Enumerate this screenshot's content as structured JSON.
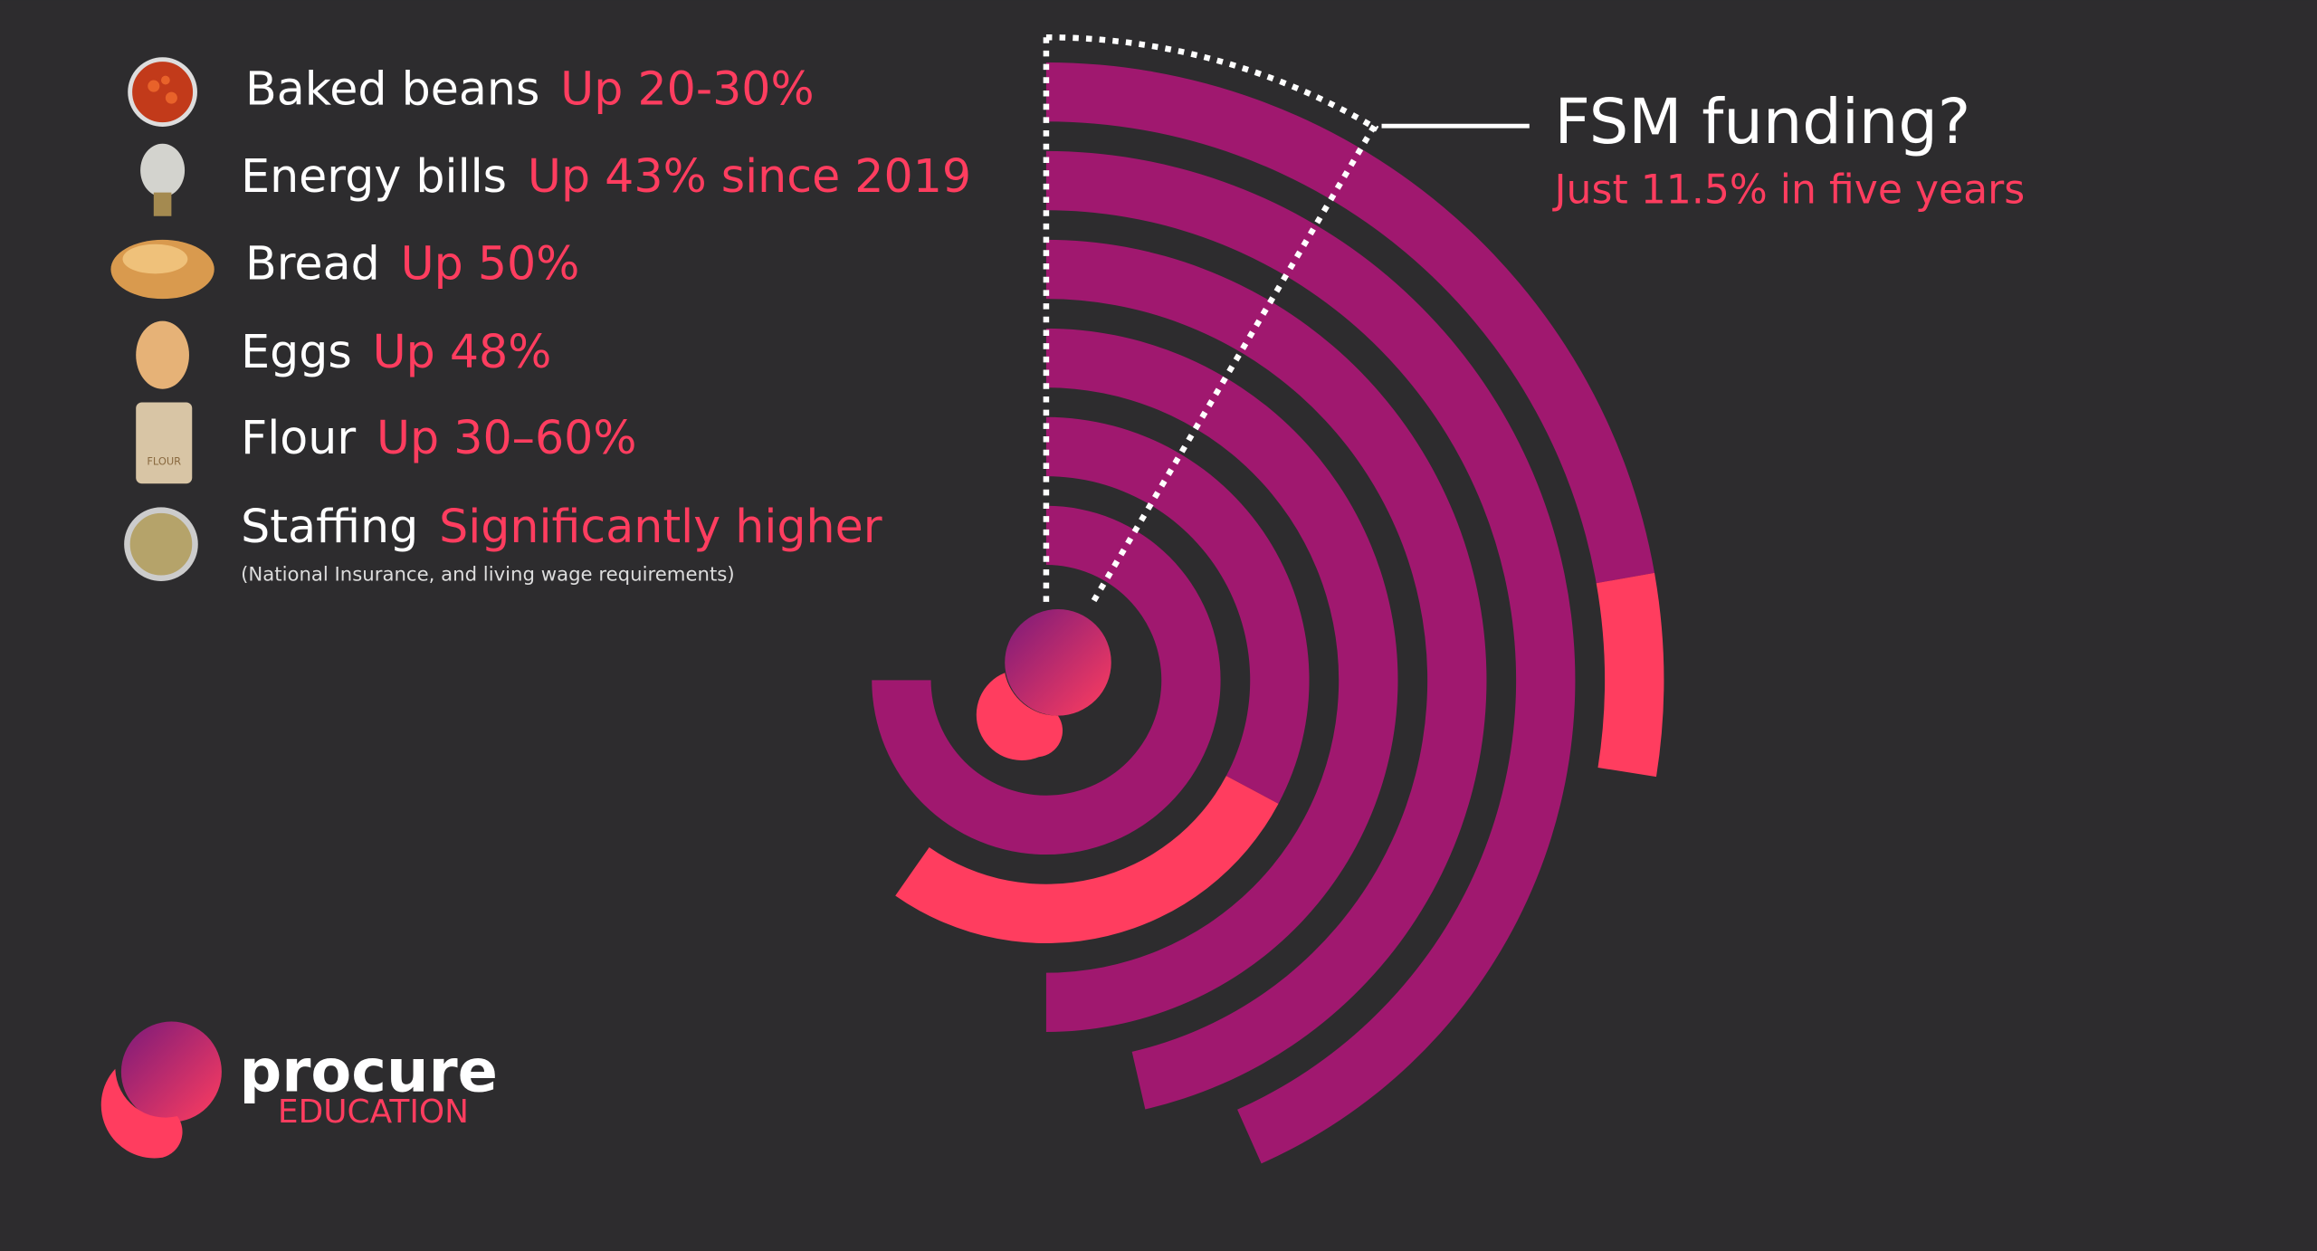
{
  "items": [
    {
      "label": "Baked  beans",
      "value": "Up 20-30%"
    },
    {
      "label": "Energy bills",
      "value": "Up 43% since 2019"
    },
    {
      "label": "Bread",
      "value": "Up 50%"
    },
    {
      "label": "Eggs",
      "value": "Up 48%"
    },
    {
      "label": "Flour",
      "value": "Up 30–60%"
    },
    {
      "label": "Staffing",
      "value": "Significantly higher"
    }
  ],
  "note": "(National Insurance, and living wage requirements)",
  "fsm": {
    "title": "FSM funding?",
    "subtitle": "Just 11.5% in five years"
  },
  "logo": {
    "name": "procure",
    "sub": "EDUCATION"
  }
}
